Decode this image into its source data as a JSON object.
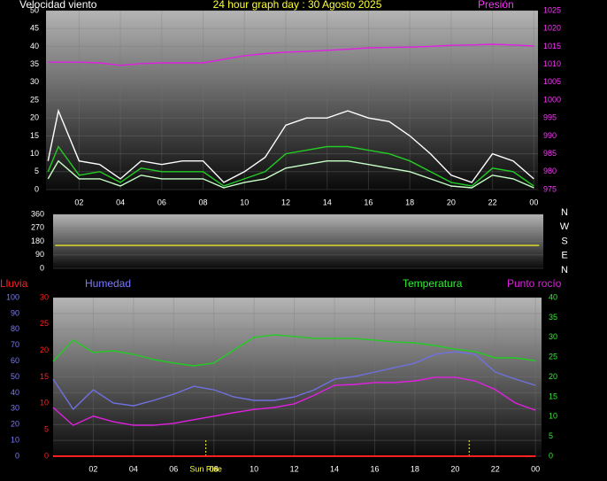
{
  "chart_data": [
    {
      "type": "line",
      "title": "24 hour graph day : 30 Agosto 2025",
      "ylabel": "Velocidad viento",
      "x": [
        0.5,
        1,
        2,
        3,
        4,
        5,
        6,
        7,
        8,
        9,
        10,
        11,
        12,
        13,
        14,
        15,
        16,
        17,
        18,
        19,
        20,
        21,
        22,
        23,
        24
      ],
      "xlim": [
        0.4,
        24.2
      ],
      "xticks": [
        {
          "value": 2,
          "label": "02"
        },
        {
          "value": 4,
          "label": "04"
        },
        {
          "value": 6,
          "label": "06"
        },
        {
          "value": 8,
          "label": "08"
        },
        10,
        12,
        14,
        16,
        18,
        20,
        22,
        {
          "value": 24,
          "label": "00"
        }
      ],
      "ylim": [
        0,
        50
      ],
      "yticks": [
        0,
        5,
        10,
        15,
        20,
        25,
        30,
        35,
        40,
        45,
        50
      ],
      "y2lim": [
        975,
        1025
      ],
      "y2ticks": [
        975,
        980,
        985,
        990,
        995,
        1000,
        1005,
        1010,
        1015,
        1020,
        1025
      ],
      "axis_colors": {
        "y": "#ffffff",
        "y2": "#ff33ff"
      },
      "grid": true,
      "series": [
        {
          "color": "#ffffff",
          "values": [
            8,
            22,
            8,
            7,
            3,
            8,
            7,
            8,
            8,
            2,
            5,
            9,
            18,
            20,
            20,
            22,
            20,
            19,
            15,
            10,
            4,
            2,
            10,
            8,
            3
          ]
        },
        {
          "color": "#c8ffc8",
          "values": [
            3,
            8,
            3,
            3,
            1,
            4,
            3,
            3,
            3,
            0.5,
            2,
            3,
            6,
            7,
            8,
            8,
            7,
            6,
            5,
            3,
            1,
            0.5,
            4,
            3,
            0.5
          ]
        },
        {
          "color": "#22cc22",
          "values": [
            5,
            12,
            4,
            5,
            2,
            6,
            5,
            5,
            5,
            1,
            3,
            5,
            10,
            11,
            12,
            12,
            11,
            10,
            8,
            5,
            2,
            1,
            6,
            5,
            1
          ]
        },
        {
          "name": "Presión",
          "color": "#e020e0",
          "axis": "y2",
          "values": [
            1010.6,
            1010.6,
            1010.6,
            1010.4,
            1009.7,
            1010.2,
            1010.4,
            1010.4,
            1010.4,
            1011.4,
            1012.4,
            1013.0,
            1013.4,
            1013.6,
            1013.9,
            1014.2,
            1014.6,
            1014.7,
            1014.8,
            1015.0,
            1015.3,
            1015.4,
            1015.6,
            1015.4,
            1015.1
          ]
        }
      ]
    },
    {
      "type": "line",
      "x": [
        0.5,
        24
      ],
      "xlim": [
        0.4,
        24.2
      ],
      "ylim": [
        0,
        360
      ],
      "yticks": [
        0,
        90,
        180,
        270,
        360
      ],
      "axis_colors": {
        "y": "#ffffff"
      },
      "grid": true,
      "compass": [
        "N",
        "W",
        "S",
        "E",
        "N"
      ],
      "series": [
        {
          "color": "#e6e620",
          "values": [
            153,
            153
          ]
        }
      ]
    },
    {
      "type": "line",
      "x": [
        0,
        1,
        2,
        3,
        4,
        5,
        6,
        7,
        8,
        9,
        10,
        11,
        12,
        13,
        14,
        15,
        16,
        17,
        18,
        19,
        20,
        21,
        22,
        23,
        24
      ],
      "xlim": [
        0,
        24.3
      ],
      "xticks": [
        {
          "value": 2,
          "label": "02"
        },
        {
          "value": 4,
          "label": "04"
        },
        {
          "value": 6,
          "label": "06"
        },
        {
          "value": 8,
          "label": "08"
        },
        10,
        12,
        14,
        16,
        18,
        20,
        22,
        {
          "value": 24,
          "label": "00"
        }
      ],
      "ylim": [
        0,
        100
      ],
      "yticks": [
        0,
        10,
        20,
        30,
        40,
        50,
        60,
        70,
        80,
        90,
        100
      ],
      "y2lim": [
        0,
        40
      ],
      "y2ticks": [
        0,
        5,
        10,
        15,
        20,
        25,
        30,
        35,
        40
      ],
      "y3lim": [
        0,
        30
      ],
      "y3ticks": [
        0,
        5,
        10,
        15,
        20,
        25,
        30
      ],
      "axis_colors": {
        "y": "#7a7aff",
        "y2": "#33ee33",
        "y3": "#ff2020"
      },
      "grid": true,
      "sun_lines": [
        7.6,
        20.7
      ],
      "annotations": [
        {
          "text": "Sun Rise",
          "x": 7.6
        }
      ],
      "series": [
        {
          "name": "Humedad",
          "color": "#7070e0",
          "values": [
            48.6,
            29.6,
            41.9,
            33.5,
            31.8,
            35.2,
            39.1,
            44.1,
            41.9,
            37.4,
            35.2,
            35.2,
            37.4,
            41.9,
            48.6,
            50.3,
            53.1,
            55.9,
            58.7,
            64.2,
            65.9,
            64.2,
            53.1,
            48.6,
            44.7
          ]
        },
        {
          "name": "Temperatura",
          "color": "#22cc22",
          "axis": "y2",
          "values": [
            23.9,
            29.3,
            26.2,
            26.6,
            25.7,
            24.4,
            23.5,
            22.8,
            23.5,
            26.8,
            30.0,
            30.6,
            30.2,
            29.7,
            29.7,
            29.7,
            29.3,
            28.8,
            28.6,
            27.9,
            27.0,
            26.4,
            24.8,
            24.8,
            24.1
          ]
        },
        {
          "name": "Punto rocío",
          "color": "#e020e0",
          "axis": "y2",
          "values": [
            12.3,
            7.8,
            10.1,
            8.7,
            7.8,
            7.8,
            8.3,
            9.2,
            10.1,
            11.0,
            11.8,
            12.3,
            13.2,
            15.4,
            17.9,
            18.1,
            18.6,
            18.6,
            19.0,
            19.9,
            19.9,
            19.0,
            16.8,
            13.4,
            11.6
          ]
        },
        {
          "name": "Lluvia",
          "color": "#ff2020",
          "axis": "y3",
          "values": [
            0,
            0,
            0,
            0,
            0,
            0,
            0,
            0,
            0,
            0,
            0,
            0,
            0,
            0,
            0,
            0,
            0,
            0,
            0,
            0,
            0,
            0,
            0,
            0,
            0
          ]
        }
      ]
    }
  ]
}
